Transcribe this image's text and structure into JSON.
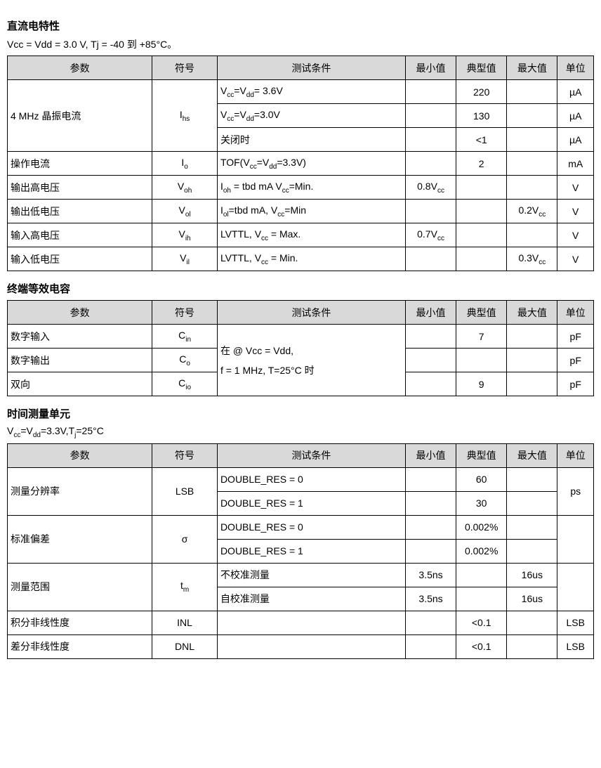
{
  "headers": {
    "param": "参数",
    "symbol": "符号",
    "condition": "测试条件",
    "min": "最小值",
    "typ": "典型值",
    "max": "最大值",
    "unit": "单位"
  },
  "section1": {
    "title": "直流电特性",
    "subtitle": "Vcc = Vdd = 3.0 V, Tj = -40 到 +85°C。",
    "rows": {
      "r0": {
        "param": "4 MHz 晶振电流",
        "symbol": "I_hs"
      },
      "r0a": {
        "cond": "V_cc=V_dd= 3.6V",
        "typ": "220",
        "unit": "µA"
      },
      "r0b": {
        "cond": "V_cc=V_dd=3.0V",
        "typ": "130",
        "unit": "µA"
      },
      "r0c": {
        "cond": "关闭时",
        "typ": "<1",
        "unit": "µA"
      },
      "r1": {
        "param": "操作电流",
        "symbol": "I_o",
        "cond": "TOF(V_cc=V_dd=3.3V)",
        "typ": "2",
        "unit": "mA"
      },
      "r2": {
        "param": "输出高电压",
        "symbol": "V_oh",
        "cond": "I_oh = tbd mA V_cc=Min.",
        "min": "0.8V_cc",
        "unit": "V"
      },
      "r3": {
        "param": "输出低电压",
        "symbol": "V_ol",
        "cond": "I_ol=tbd mA, V_cc=Min",
        "max": "0.2V_cc",
        "unit": "V"
      },
      "r4": {
        "param": "输入高电压",
        "symbol": "V_ih",
        "cond": "LVTTL,  V_cc = Max.",
        "min": "0.7V_cc",
        "unit": "V"
      },
      "r5": {
        "param": "输入低电压",
        "symbol": "V_il",
        "cond": "LVTTL,  V_cc = Min.",
        "max": "0.3V_cc",
        "unit": "V"
      }
    }
  },
  "section2": {
    "title": "终端等效电容",
    "cond_shared": "在 @ Vcc = Vdd,\nf = 1 MHz,  T=25°C 时",
    "rows": {
      "r0": {
        "param": "数字输入",
        "symbol": "C_in",
        "typ": "7",
        "unit": "pF"
      },
      "r1": {
        "param": "数字输出",
        "symbol": "C_o",
        "unit": "pF"
      },
      "r2": {
        "param": "双向",
        "symbol": "C_io",
        "typ": "9",
        "unit": "pF"
      }
    }
  },
  "section3": {
    "title": "时间测量单元",
    "subtitle": "V_cc=V_dd=3.3V,T_j=25°C",
    "rows": {
      "r0": {
        "param": "测量分辨率",
        "symbol": "LSB",
        "unit": "ps"
      },
      "r0a": {
        "cond": "DOUBLE_RES = 0",
        "typ": "60"
      },
      "r0b": {
        "cond": "DOUBLE_RES = 1",
        "typ": "30"
      },
      "r1": {
        "param": "标准偏差",
        "symbol": "σ"
      },
      "r1a": {
        "cond": "DOUBLE_RES = 0",
        "typ": "0.002%"
      },
      "r1b": {
        "cond": "DOUBLE_RES = 1",
        "typ": "0.002%"
      },
      "r2": {
        "param": "测量范围",
        "symbol": "t_m"
      },
      "r2a": {
        "cond": "不校准测量",
        "min": "3.5ns",
        "max": "16us"
      },
      "r2b": {
        "cond": "自校准测量",
        "min": "3.5ns",
        "max": "16us"
      },
      "r3": {
        "param": "积分非线性度",
        "symbol": "INL",
        "typ": "<0.1",
        "unit": "LSB"
      },
      "r4": {
        "param": "差分非线性度",
        "symbol": "DNL",
        "typ": "<0.1",
        "unit": "LSB"
      }
    }
  }
}
